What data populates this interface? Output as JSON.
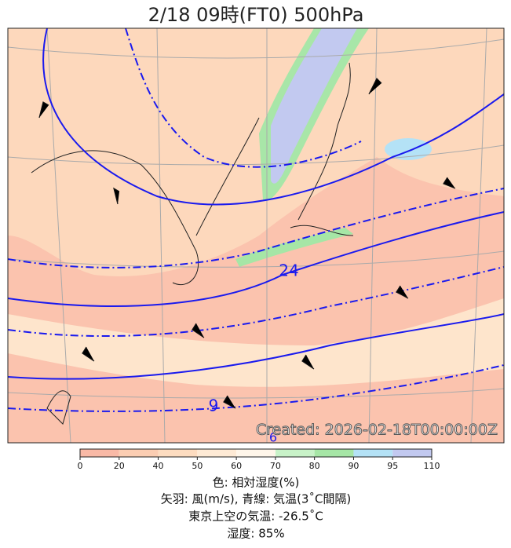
{
  "title": "2/18  09時(FT0)    500hPa",
  "map": {
    "contour_labels": [
      "24",
      "9",
      "6"
    ],
    "watermark": "Created: 2026-02-18T00:00:00Z"
  },
  "colorbar": {
    "ticks": [
      0,
      20,
      40,
      50,
      60,
      70,
      80,
      90,
      95,
      110
    ],
    "colors": [
      "#f9b9a6",
      "#fbcdb2",
      "#fddcc0",
      "#feead5",
      "#fff6ea",
      "#c8f2c8",
      "#a6e6a6",
      "#b4e2f6",
      "#c2c9f0"
    ]
  },
  "captions": [
    "色: 相対湿度(%)",
    "矢羽: 風(m/s),  青線: 気温(3˚C間隔)",
    "東京上空の気温: -26.5˚C",
    "湿度: 85%"
  ]
}
